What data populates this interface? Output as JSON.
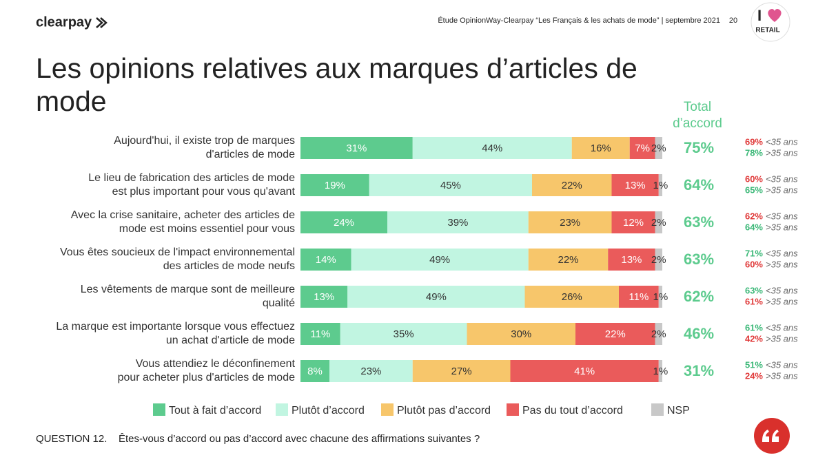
{
  "header": {
    "brand": "clearpay",
    "source": "Étude OpinionWay-Clearpay “Les Français & les achats de mode” | septembre 2021",
    "page": "20",
    "badge": [
      "I",
      "RETAIL"
    ]
  },
  "chart_data": {
    "type": "stacked_bar",
    "orientation": "horizontal",
    "title": [
      "Les opinions relatives aux marques d’articles de",
      "mode"
    ],
    "categories": [
      [
        "Aujourd'hui, il existe trop de marques",
        "d'articles de mode"
      ],
      [
        "Le lieu de fabrication des articles de mode",
        "est plus important pour vous qu'avant"
      ],
      [
        "Avec la crise sanitaire, acheter des articles de",
        "mode est moins essentiel pour vous"
      ],
      [
        "Vous êtes soucieux de l'impact environnemental",
        "des articles de mode neufs"
      ],
      [
        "Les vêtements de marque sont de meilleure",
        "qualité"
      ],
      [
        "La marque est importante lorsque vous effectuez",
        "un achat d'article de mode"
      ],
      [
        "Vous attendiez le déconfinement",
        "pour acheter plus d'articles de mode"
      ]
    ],
    "xlim": [
      0,
      100
    ],
    "series": [
      {
        "name": "Tout à fait d’accord",
        "color": "#5dcb8e",
        "values": [
          31,
          19,
          24,
          14,
          13,
          11,
          8
        ],
        "value_labels": [
          "31%",
          "19%",
          "24%",
          "14%",
          "13%",
          "11%",
          "8%"
        ]
      },
      {
        "name": "Plutôt d’accord",
        "color": "#c1f5e1",
        "values": [
          44,
          45,
          39,
          49,
          49,
          35,
          23
        ],
        "value_labels": [
          "44%",
          "45%",
          "39%",
          "49%",
          "49%",
          "35%",
          "23%"
        ]
      },
      {
        "name": "Plutôt pas d’accord",
        "color": "#f7c66b",
        "values": [
          16,
          22,
          23,
          22,
          26,
          30,
          27
        ],
        "value_labels": [
          "16%",
          "22%",
          "23%",
          "22%",
          "26%",
          "30%",
          "27%"
        ]
      },
      {
        "name": "Pas du tout d’accord",
        "color": "#ea5b5b",
        "values": [
          7,
          13,
          12,
          13,
          11,
          22,
          41
        ],
        "value_labels": [
          "7%",
          "13%",
          "12%",
          "13%",
          "11%",
          "22%",
          "41%"
        ]
      },
      {
        "name": "NSP",
        "color": "#c8c8c8",
        "values": [
          2,
          1,
          2,
          2,
          1,
          2,
          1
        ],
        "value_labels": [
          "2%",
          "1%",
          "2%",
          "2%",
          "1%",
          "2%",
          "1%"
        ]
      }
    ],
    "total": {
      "label": [
        "Total",
        "d’accord"
      ],
      "color": "#5dcb8e",
      "values": [
        75,
        64,
        63,
        63,
        62,
        46,
        31
      ],
      "value_labels": [
        "75%",
        "64%",
        "63%",
        "63%",
        "62%",
        "46%",
        "31%"
      ]
    },
    "age_groups": [
      {
        "name": "<35 ans",
        "values": [
          69,
          60,
          62,
          71,
          63,
          61,
          51
        ],
        "value_labels": [
          "69%",
          "60%",
          "62%",
          "71%",
          "63%",
          "61%",
          "51%"
        ]
      },
      {
        "name": ">35 ans",
        "values": [
          78,
          65,
          64,
          60,
          61,
          42,
          24
        ],
        "value_labels": [
          "78%",
          "65%",
          "64%",
          "60%",
          "61%",
          "42%",
          "24%"
        ]
      }
    ],
    "higher_color": "#3cb878",
    "lower_color": "#e03b3b"
  },
  "footer": {
    "question_number": "QUESTION 12.",
    "question": "Êtes-vous d’accord ou pas d’accord avec chacune des affirmations suivantes ?"
  }
}
